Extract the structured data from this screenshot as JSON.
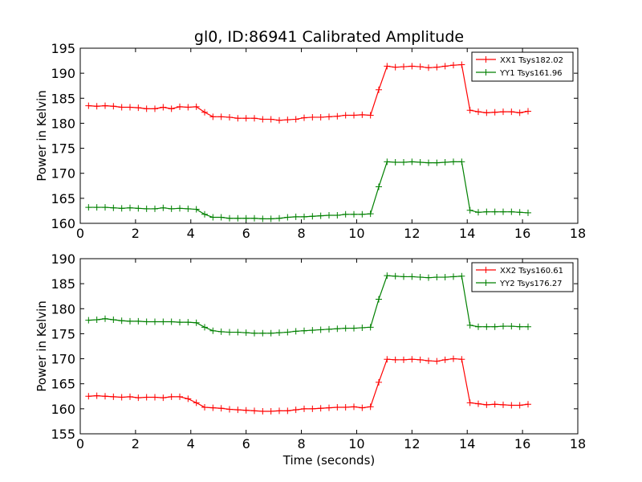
{
  "figure": {
    "title": "gl0, ID:86941 Calibrated Amplitude",
    "xlabel": "Time (seconds)"
  },
  "chart_data": [
    {
      "type": "line",
      "title": "gl0, ID:86941 Calibrated Amplitude",
      "ylabel": "Power in Kelvin",
      "xlim": [
        0,
        18
      ],
      "ylim": [
        160,
        195
      ],
      "xticks": [
        "0",
        "2",
        "4",
        "6",
        "8",
        "10",
        "12",
        "14",
        "16",
        "18"
      ],
      "yticks": [
        "160",
        "165",
        "170",
        "175",
        "180",
        "185",
        "190",
        "195"
      ],
      "legend": "top-right",
      "x": [
        0.3,
        0.6,
        0.9,
        1.2,
        1.5,
        1.8,
        2.1,
        2.4,
        2.7,
        3.0,
        3.3,
        3.6,
        3.9,
        4.2,
        4.5,
        4.8,
        5.1,
        5.4,
        5.7,
        6.0,
        6.3,
        6.6,
        6.9,
        7.2,
        7.5,
        7.8,
        8.1,
        8.4,
        8.7,
        9.0,
        9.3,
        9.6,
        9.9,
        10.2,
        10.5,
        10.8,
        11.1,
        11.4,
        11.7,
        12.0,
        12.3,
        12.6,
        12.9,
        13.2,
        13.5,
        13.8,
        14.1,
        14.4,
        14.7,
        15.0,
        15.3,
        15.6,
        15.9,
        16.2
      ],
      "series": [
        {
          "name": "XX1 Tsys182.02",
          "color": "#ff0000",
          "values": [
            183.5,
            183.4,
            183.5,
            183.4,
            183.2,
            183.2,
            183.1,
            182.9,
            182.9,
            183.2,
            182.9,
            183.3,
            183.2,
            183.3,
            182.2,
            181.3,
            181.3,
            181.2,
            181.0,
            181.0,
            181.0,
            180.8,
            180.8,
            180.6,
            180.7,
            180.8,
            181.1,
            181.2,
            181.2,
            181.3,
            181.4,
            181.6,
            181.6,
            181.7,
            181.6,
            186.7,
            191.4,
            191.2,
            191.3,
            191.4,
            191.3,
            191.1,
            191.2,
            191.4,
            191.6,
            191.7,
            182.6,
            182.3,
            182.1,
            182.2,
            182.3,
            182.3,
            182.1,
            182.4
          ]
        },
        {
          "name": "YY1 Tsys161.96",
          "color": "#008000",
          "values": [
            163.2,
            163.2,
            163.2,
            163.1,
            163.0,
            163.1,
            163.0,
            162.9,
            162.9,
            163.1,
            162.9,
            163.0,
            162.9,
            162.8,
            161.8,
            161.2,
            161.2,
            161.0,
            161.0,
            161.0,
            161.0,
            160.9,
            160.9,
            161.0,
            161.2,
            161.3,
            161.3,
            161.4,
            161.5,
            161.6,
            161.6,
            161.8,
            161.8,
            161.8,
            161.9,
            167.3,
            172.3,
            172.2,
            172.2,
            172.3,
            172.2,
            172.1,
            172.1,
            172.2,
            172.3,
            172.3,
            162.6,
            162.2,
            162.3,
            162.3,
            162.3,
            162.3,
            162.2,
            162.1
          ]
        }
      ]
    },
    {
      "type": "line",
      "title": "",
      "xlabel": "Time (seconds)",
      "ylabel": "Power in Kelvin",
      "xlim": [
        0,
        18
      ],
      "ylim": [
        155,
        190
      ],
      "xticks": [
        "0",
        "2",
        "4",
        "6",
        "8",
        "10",
        "12",
        "14",
        "16",
        "18"
      ],
      "yticks": [
        "155",
        "160",
        "165",
        "170",
        "175",
        "180",
        "185",
        "190"
      ],
      "legend": "top-right",
      "x": [
        0.3,
        0.6,
        0.9,
        1.2,
        1.5,
        1.8,
        2.1,
        2.4,
        2.7,
        3.0,
        3.3,
        3.6,
        3.9,
        4.2,
        4.5,
        4.8,
        5.1,
        5.4,
        5.7,
        6.0,
        6.3,
        6.6,
        6.9,
        7.2,
        7.5,
        7.8,
        8.1,
        8.4,
        8.7,
        9.0,
        9.3,
        9.6,
        9.9,
        10.2,
        10.5,
        10.8,
        11.1,
        11.4,
        11.7,
        12.0,
        12.3,
        12.6,
        12.9,
        13.2,
        13.5,
        13.8,
        14.1,
        14.4,
        14.7,
        15.0,
        15.3,
        15.6,
        15.9,
        16.2
      ],
      "series": [
        {
          "name": "XX2 Tsys160.61",
          "color": "#ff0000",
          "values": [
            162.5,
            162.6,
            162.5,
            162.4,
            162.3,
            162.4,
            162.2,
            162.3,
            162.3,
            162.2,
            162.4,
            162.4,
            162.0,
            161.2,
            160.3,
            160.2,
            160.1,
            159.9,
            159.8,
            159.7,
            159.6,
            159.5,
            159.5,
            159.6,
            159.6,
            159.8,
            160.0,
            160.0,
            160.1,
            160.2,
            160.3,
            160.3,
            160.4,
            160.2,
            160.4,
            165.3,
            169.9,
            169.8,
            169.8,
            169.9,
            169.8,
            169.6,
            169.5,
            169.8,
            170.0,
            169.9,
            161.2,
            161.0,
            160.8,
            160.9,
            160.8,
            160.7,
            160.7,
            160.9
          ]
        },
        {
          "name": "YY2 Tsys176.27",
          "color": "#008000",
          "values": [
            177.7,
            177.8,
            178.0,
            177.8,
            177.6,
            177.5,
            177.5,
            177.4,
            177.4,
            177.4,
            177.4,
            177.3,
            177.3,
            177.2,
            176.3,
            175.6,
            175.4,
            175.3,
            175.3,
            175.2,
            175.1,
            175.1,
            175.1,
            175.2,
            175.3,
            175.5,
            175.6,
            175.7,
            175.8,
            175.9,
            176.0,
            176.1,
            176.1,
            176.2,
            176.3,
            181.9,
            186.6,
            186.5,
            186.4,
            186.4,
            186.3,
            186.2,
            186.3,
            186.3,
            186.4,
            186.5,
            176.7,
            176.4,
            176.4,
            176.4,
            176.5,
            176.5,
            176.4,
            176.4
          ]
        }
      ]
    }
  ]
}
